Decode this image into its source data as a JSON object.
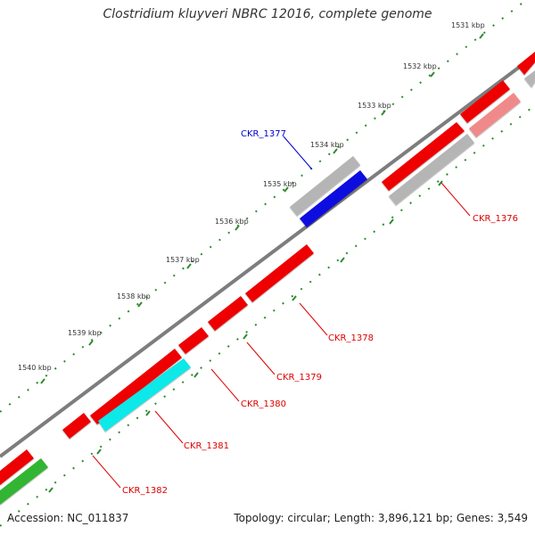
{
  "title": "Clostridium kluyveri NBRC 12016, complete genome",
  "footer": {
    "accession": "Accession: NC_011837",
    "summary": "Topology: circular; Length: 3,896,121 bp; Genes: 3,549"
  },
  "colors": {
    "backbone": "#7d7d7d",
    "tick": "#2e8b2e",
    "gene_red": "#ee0000",
    "gene_pink": "#f08a8a",
    "gene_gray": "#b5b5b5",
    "gene_blue": "#1010e0",
    "gene_cyan": "#10e8e8",
    "gene_green": "#33b533",
    "label_red": "#dd0000",
    "label_blue": "#0000cc"
  },
  "kbp_labels": [
    {
      "text": "1531 kbp"
    },
    {
      "text": "1532 kbp"
    },
    {
      "text": "1533 kbp"
    },
    {
      "text": "1534 kbp"
    },
    {
      "text": "1535 kbp"
    },
    {
      "text": "1536 kbp"
    },
    {
      "text": "1537 kbp"
    },
    {
      "text": "1538 kbp"
    },
    {
      "text": "1539 kbp"
    },
    {
      "text": "1540 kbp"
    }
  ],
  "gene_labels": [
    {
      "text": "CKR_1377",
      "color": "blue"
    },
    {
      "text": "CKR_1376",
      "color": "red"
    },
    {
      "text": "CKR_1378",
      "color": "red"
    },
    {
      "text": "CKR_1379",
      "color": "red"
    },
    {
      "text": "CKR_1380",
      "color": "red"
    },
    {
      "text": "CKR_1381",
      "color": "red"
    },
    {
      "text": "CKR_1382",
      "color": "red"
    }
  ]
}
